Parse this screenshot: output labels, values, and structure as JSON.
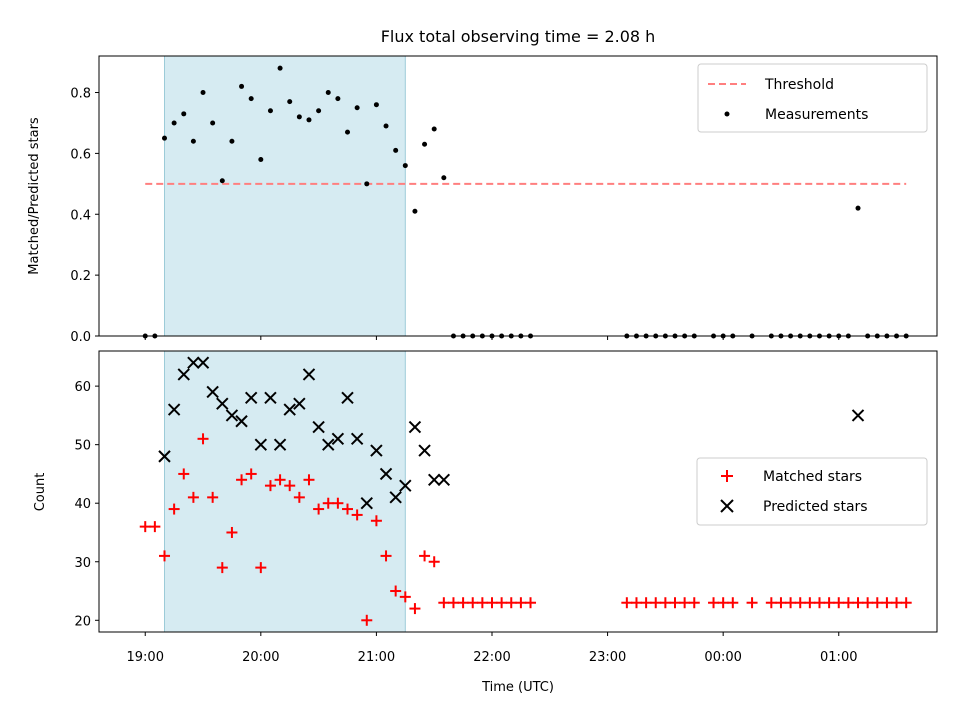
{
  "chart_data": [
    {
      "type": "scatter",
      "title": "Flux total observing time = 2.08 h",
      "xlabel": "",
      "ylabel": "Matched/Predicted stars",
      "ylim": [
        0,
        0.92
      ],
      "y_ticks": [
        0.0,
        0.2,
        0.4,
        0.6,
        0.8
      ],
      "y_tick_labels": [
        "0.0",
        "0.2",
        "0.4",
        "0.6",
        "0.8"
      ],
      "x_tick_hours": [
        19,
        20,
        21,
        22,
        23,
        24,
        25
      ],
      "x_tick_labels": [],
      "grid": false,
      "legend_position": "top-right",
      "highlight_span": {
        "start": "19:10",
        "end": "21:15",
        "color": "#add8e6"
      },
      "threshold": {
        "name": "Threshold",
        "value": 0.5,
        "x_start": "19:00",
        "x_end": "01:35",
        "color": "#ff7f7f"
      },
      "series": [
        {
          "name": "Measurements",
          "marker": "dot",
          "color": "#000000",
          "x": [
            "19:00",
            "19:05",
            "19:10",
            "19:15",
            "19:20",
            "19:25",
            "19:30",
            "19:35",
            "19:40",
            "19:45",
            "19:50",
            "19:55",
            "20:00",
            "20:05",
            "20:10",
            "20:15",
            "20:20",
            "20:25",
            "20:30",
            "20:35",
            "20:40",
            "20:45",
            "20:50",
            "20:55",
            "21:00",
            "21:05",
            "21:10",
            "21:15",
            "21:20",
            "21:25",
            "21:30",
            "21:35",
            "21:40",
            "21:45",
            "21:50",
            "21:55",
            "22:00",
            "22:05",
            "22:10",
            "22:15",
            "22:20",
            "23:10",
            "23:15",
            "23:20",
            "23:25",
            "23:30",
            "23:35",
            "23:40",
            "23:45",
            "23:55",
            "00:00",
            "00:05",
            "00:15",
            "00:25",
            "00:30",
            "00:35",
            "00:40",
            "00:45",
            "00:50",
            "00:55",
            "01:00",
            "01:05",
            "01:10",
            "01:15",
            "01:20",
            "01:25",
            "01:30",
            "01:35"
          ],
          "y": [
            0,
            0,
            0.65,
            0.7,
            0.73,
            0.64,
            0.8,
            0.7,
            0.51,
            0.64,
            0.82,
            0.78,
            0.58,
            0.74,
            0.88,
            0.77,
            0.72,
            0.71,
            0.74,
            0.8,
            0.78,
            0.67,
            0.75,
            0.5,
            0.76,
            0.69,
            0.61,
            0.56,
            0.41,
            0.63,
            0.68,
            0.52,
            0,
            0,
            0,
            0,
            0,
            0,
            0,
            0,
            0,
            0,
            0,
            0,
            0,
            0,
            0,
            0,
            0,
            0,
            0,
            0,
            0,
            0,
            0,
            0,
            0,
            0,
            0,
            0,
            0,
            0,
            0.42,
            0,
            0,
            0,
            0,
            0
          ]
        }
      ]
    },
    {
      "type": "scatter",
      "title": "",
      "xlabel": "Time (UTC)",
      "ylabel": "Count",
      "ylim": [
        18,
        66
      ],
      "y_ticks": [
        20,
        30,
        40,
        50,
        60
      ],
      "y_tick_labels": [
        "20",
        "30",
        "40",
        "50",
        "60"
      ],
      "x_tick_hours": [
        19,
        20,
        21,
        22,
        23,
        24,
        25
      ],
      "x_tick_labels": [
        "19:00",
        "20:00",
        "21:00",
        "22:00",
        "23:00",
        "00:00",
        "01:00"
      ],
      "grid": false,
      "legend_position": "center-right",
      "highlight_span": {
        "start": "19:10",
        "end": "21:15",
        "color": "#add8e6"
      },
      "series": [
        {
          "name": "Matched stars",
          "marker": "plus",
          "color": "#ff0000",
          "x": [
            "19:00",
            "19:05",
            "19:10",
            "19:15",
            "19:20",
            "19:25",
            "19:30",
            "19:35",
            "19:40",
            "19:45",
            "19:50",
            "19:55",
            "20:00",
            "20:05",
            "20:10",
            "20:15",
            "20:20",
            "20:25",
            "20:30",
            "20:35",
            "20:40",
            "20:45",
            "20:50",
            "20:55",
            "21:00",
            "21:05",
            "21:10",
            "21:15",
            "21:20",
            "21:25",
            "21:30",
            "21:35",
            "21:40",
            "21:45",
            "21:50",
            "21:55",
            "22:00",
            "22:05",
            "22:10",
            "22:15",
            "22:20",
            "23:10",
            "23:15",
            "23:20",
            "23:25",
            "23:30",
            "23:35",
            "23:40",
            "23:45",
            "23:55",
            "00:00",
            "00:05",
            "00:15",
            "00:25",
            "00:30",
            "00:35",
            "00:40",
            "00:45",
            "00:50",
            "00:55",
            "01:00",
            "01:05",
            "01:10",
            "01:15",
            "01:20",
            "01:25",
            "01:30",
            "01:35"
          ],
          "y": [
            36,
            36,
            31,
            39,
            45,
            41,
            51,
            41,
            29,
            35,
            44,
            45,
            29,
            43,
            44,
            43,
            41,
            44,
            39,
            40,
            40,
            39,
            38,
            20,
            37,
            31,
            25,
            24,
            22,
            31,
            30,
            23,
            23,
            23,
            23,
            23,
            23,
            23,
            23,
            23,
            23,
            23,
            23,
            23,
            23,
            23,
            23,
            23,
            23,
            23,
            23,
            23,
            23,
            23,
            23,
            23,
            23,
            23,
            23,
            23,
            23,
            23,
            23,
            23,
            23,
            23,
            23,
            23
          ]
        },
        {
          "name": "Predicted stars",
          "marker": "x",
          "color": "#000000",
          "x": [
            "19:10",
            "19:15",
            "19:20",
            "19:25",
            "19:30",
            "19:35",
            "19:40",
            "19:45",
            "19:50",
            "19:55",
            "20:00",
            "20:05",
            "20:10",
            "20:15",
            "20:20",
            "20:25",
            "20:30",
            "20:35",
            "20:40",
            "20:45",
            "20:50",
            "20:55",
            "21:00",
            "21:05",
            "21:10",
            "21:15",
            "21:20",
            "21:25",
            "21:30",
            "21:35",
            "01:10"
          ],
          "y": [
            48,
            56,
            62,
            64,
            64,
            59,
            57,
            55,
            54,
            58,
            50,
            58,
            50,
            56,
            57,
            62,
            53,
            50,
            51,
            58,
            51,
            40,
            49,
            45,
            41,
            43,
            53,
            49,
            44,
            44,
            55
          ]
        }
      ]
    }
  ]
}
